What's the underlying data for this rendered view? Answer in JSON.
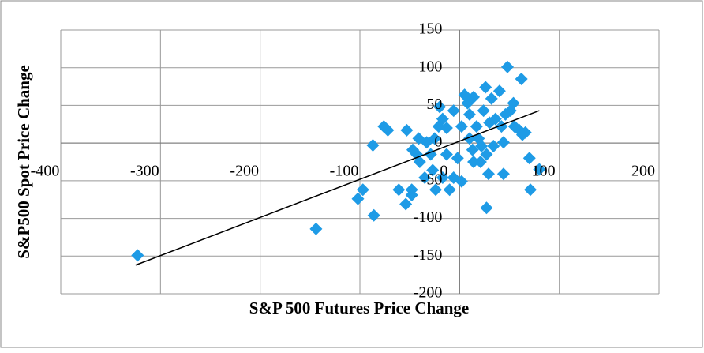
{
  "chart_data": {
    "type": "scatter",
    "xlabel": "S&P 500 Futures Price Change",
    "ylabel": "S&P500 Spot Price Change",
    "color": "#1e9be6",
    "x": [
      -323,
      -144,
      -86,
      -102,
      -97,
      -87,
      -76,
      -72,
      -53,
      -61,
      -54,
      -48,
      -47,
      -43,
      -40,
      -41,
      -33,
      -29,
      -48,
      -35,
      -27,
      -25,
      -21,
      -20,
      -17,
      -13,
      -13,
      -10,
      -6,
      -6,
      -2,
      2,
      5,
      8,
      10,
      10,
      13,
      14,
      17,
      19,
      22,
      24,
      26,
      27,
      27,
      29,
      30,
      32,
      34,
      36,
      40,
      42,
      44,
      44,
      46,
      48,
      51,
      54,
      55,
      60,
      62,
      63,
      66,
      70,
      71,
      80,
      -17,
      -24,
      14,
      21,
      2
    ],
    "y": [
      -149,
      -114,
      -96,
      -74,
      -62,
      -3,
      22,
      17,
      17,
      -62,
      -81,
      -62,
      -9,
      -15,
      -25,
      6,
      1,
      -15,
      -69,
      -46,
      -36,
      6,
      22,
      48,
      32,
      20,
      -15,
      -62,
      -46,
      43,
      -20,
      22,
      64,
      53,
      6,
      38,
      -9,
      61,
      22,
      6,
      -4,
      43,
      74,
      -86,
      -15,
      -41,
      27,
      59,
      -4,
      32,
      69,
      22,
      -41,
      1,
      38,
      101,
      43,
      53,
      22,
      17,
      85,
      11,
      14,
      -20,
      -62,
      -35,
      -46,
      -62,
      -25,
      -25,
      -51
    ],
    "trendline": {
      "x": [
        -325,
        80
      ],
      "y": [
        -162,
        43
      ]
    },
    "xlim": [
      -400,
      200
    ],
    "xticks": [
      -400,
      -300,
      -200,
      -100,
      0,
      100,
      200
    ],
    "ylim": [
      -200,
      150
    ],
    "yticks": [
      -200,
      -150,
      -100,
      -50,
      0,
      50,
      100,
      150
    ],
    "grid": true
  }
}
